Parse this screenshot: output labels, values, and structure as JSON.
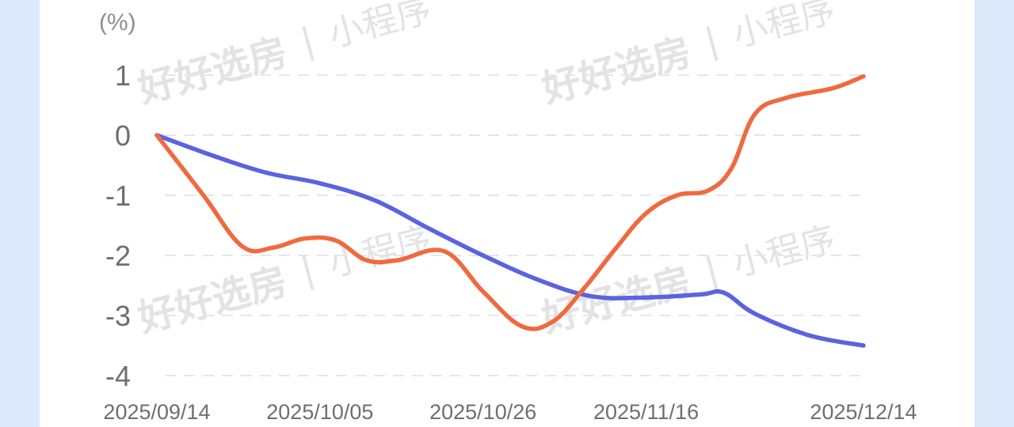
{
  "chart_data": {
    "type": "line",
    "ylabel": "(%)",
    "ylim": [
      -4,
      1
    ],
    "y_ticks": [
      "1",
      "0",
      "-1",
      "-2",
      "-3",
      "-4"
    ],
    "grid": true,
    "x_tick_labels": [
      "2025/09/14",
      "2025/10/05",
      "2025/10/26",
      "2025/11/16",
      "2025/12/14"
    ],
    "x_range": [
      "2025/09/14",
      "2025/12/14"
    ],
    "series": [
      {
        "color": "#5b63e0",
        "points": [
          [
            "2025/09/14",
            0.0
          ],
          [
            "2025/09/21",
            -0.33
          ],
          [
            "2025/09/28",
            -0.62
          ],
          [
            "2025/10/05",
            -0.8
          ],
          [
            "2025/10/12",
            -1.08
          ],
          [
            "2025/10/19",
            -1.55
          ],
          [
            "2025/10/26",
            -2.0
          ],
          [
            "2025/11/02",
            -2.4
          ],
          [
            "2025/11/09",
            -2.68
          ],
          [
            "2025/11/16",
            -2.7
          ],
          [
            "2025/11/23",
            -2.65
          ],
          [
            "2025/11/26",
            -2.62
          ],
          [
            "2025/11/30",
            -2.97
          ],
          [
            "2025/12/07",
            -3.33
          ],
          [
            "2025/12/14",
            -3.5
          ]
        ]
      },
      {
        "color": "#ef6a3f",
        "points": [
          [
            "2025/09/14",
            0.0
          ],
          [
            "2025/09/20",
            -1.0
          ],
          [
            "2025/09/25",
            -1.85
          ],
          [
            "2025/09/29",
            -1.87
          ],
          [
            "2025/10/03",
            -1.72
          ],
          [
            "2025/10/07",
            -1.75
          ],
          [
            "2025/10/11",
            -2.08
          ],
          [
            "2025/10/15",
            -2.08
          ],
          [
            "2025/10/21",
            -1.93
          ],
          [
            "2025/10/26",
            -2.6
          ],
          [
            "2025/10/31",
            -3.18
          ],
          [
            "2025/11/04",
            -3.1
          ],
          [
            "2025/11/08",
            -2.55
          ],
          [
            "2025/11/12",
            -1.9
          ],
          [
            "2025/11/16",
            -1.3
          ],
          [
            "2025/11/20",
            -1.0
          ],
          [
            "2025/11/24",
            -0.92
          ],
          [
            "2025/11/27",
            -0.55
          ],
          [
            "2025/11/30",
            0.35
          ],
          [
            "2025/12/04",
            0.62
          ],
          [
            "2025/12/10",
            0.78
          ],
          [
            "2025/12/14",
            0.98
          ]
        ]
      }
    ]
  },
  "watermark": {
    "brand": "好好选房",
    "separator": "|",
    "suffix": "小程序"
  }
}
